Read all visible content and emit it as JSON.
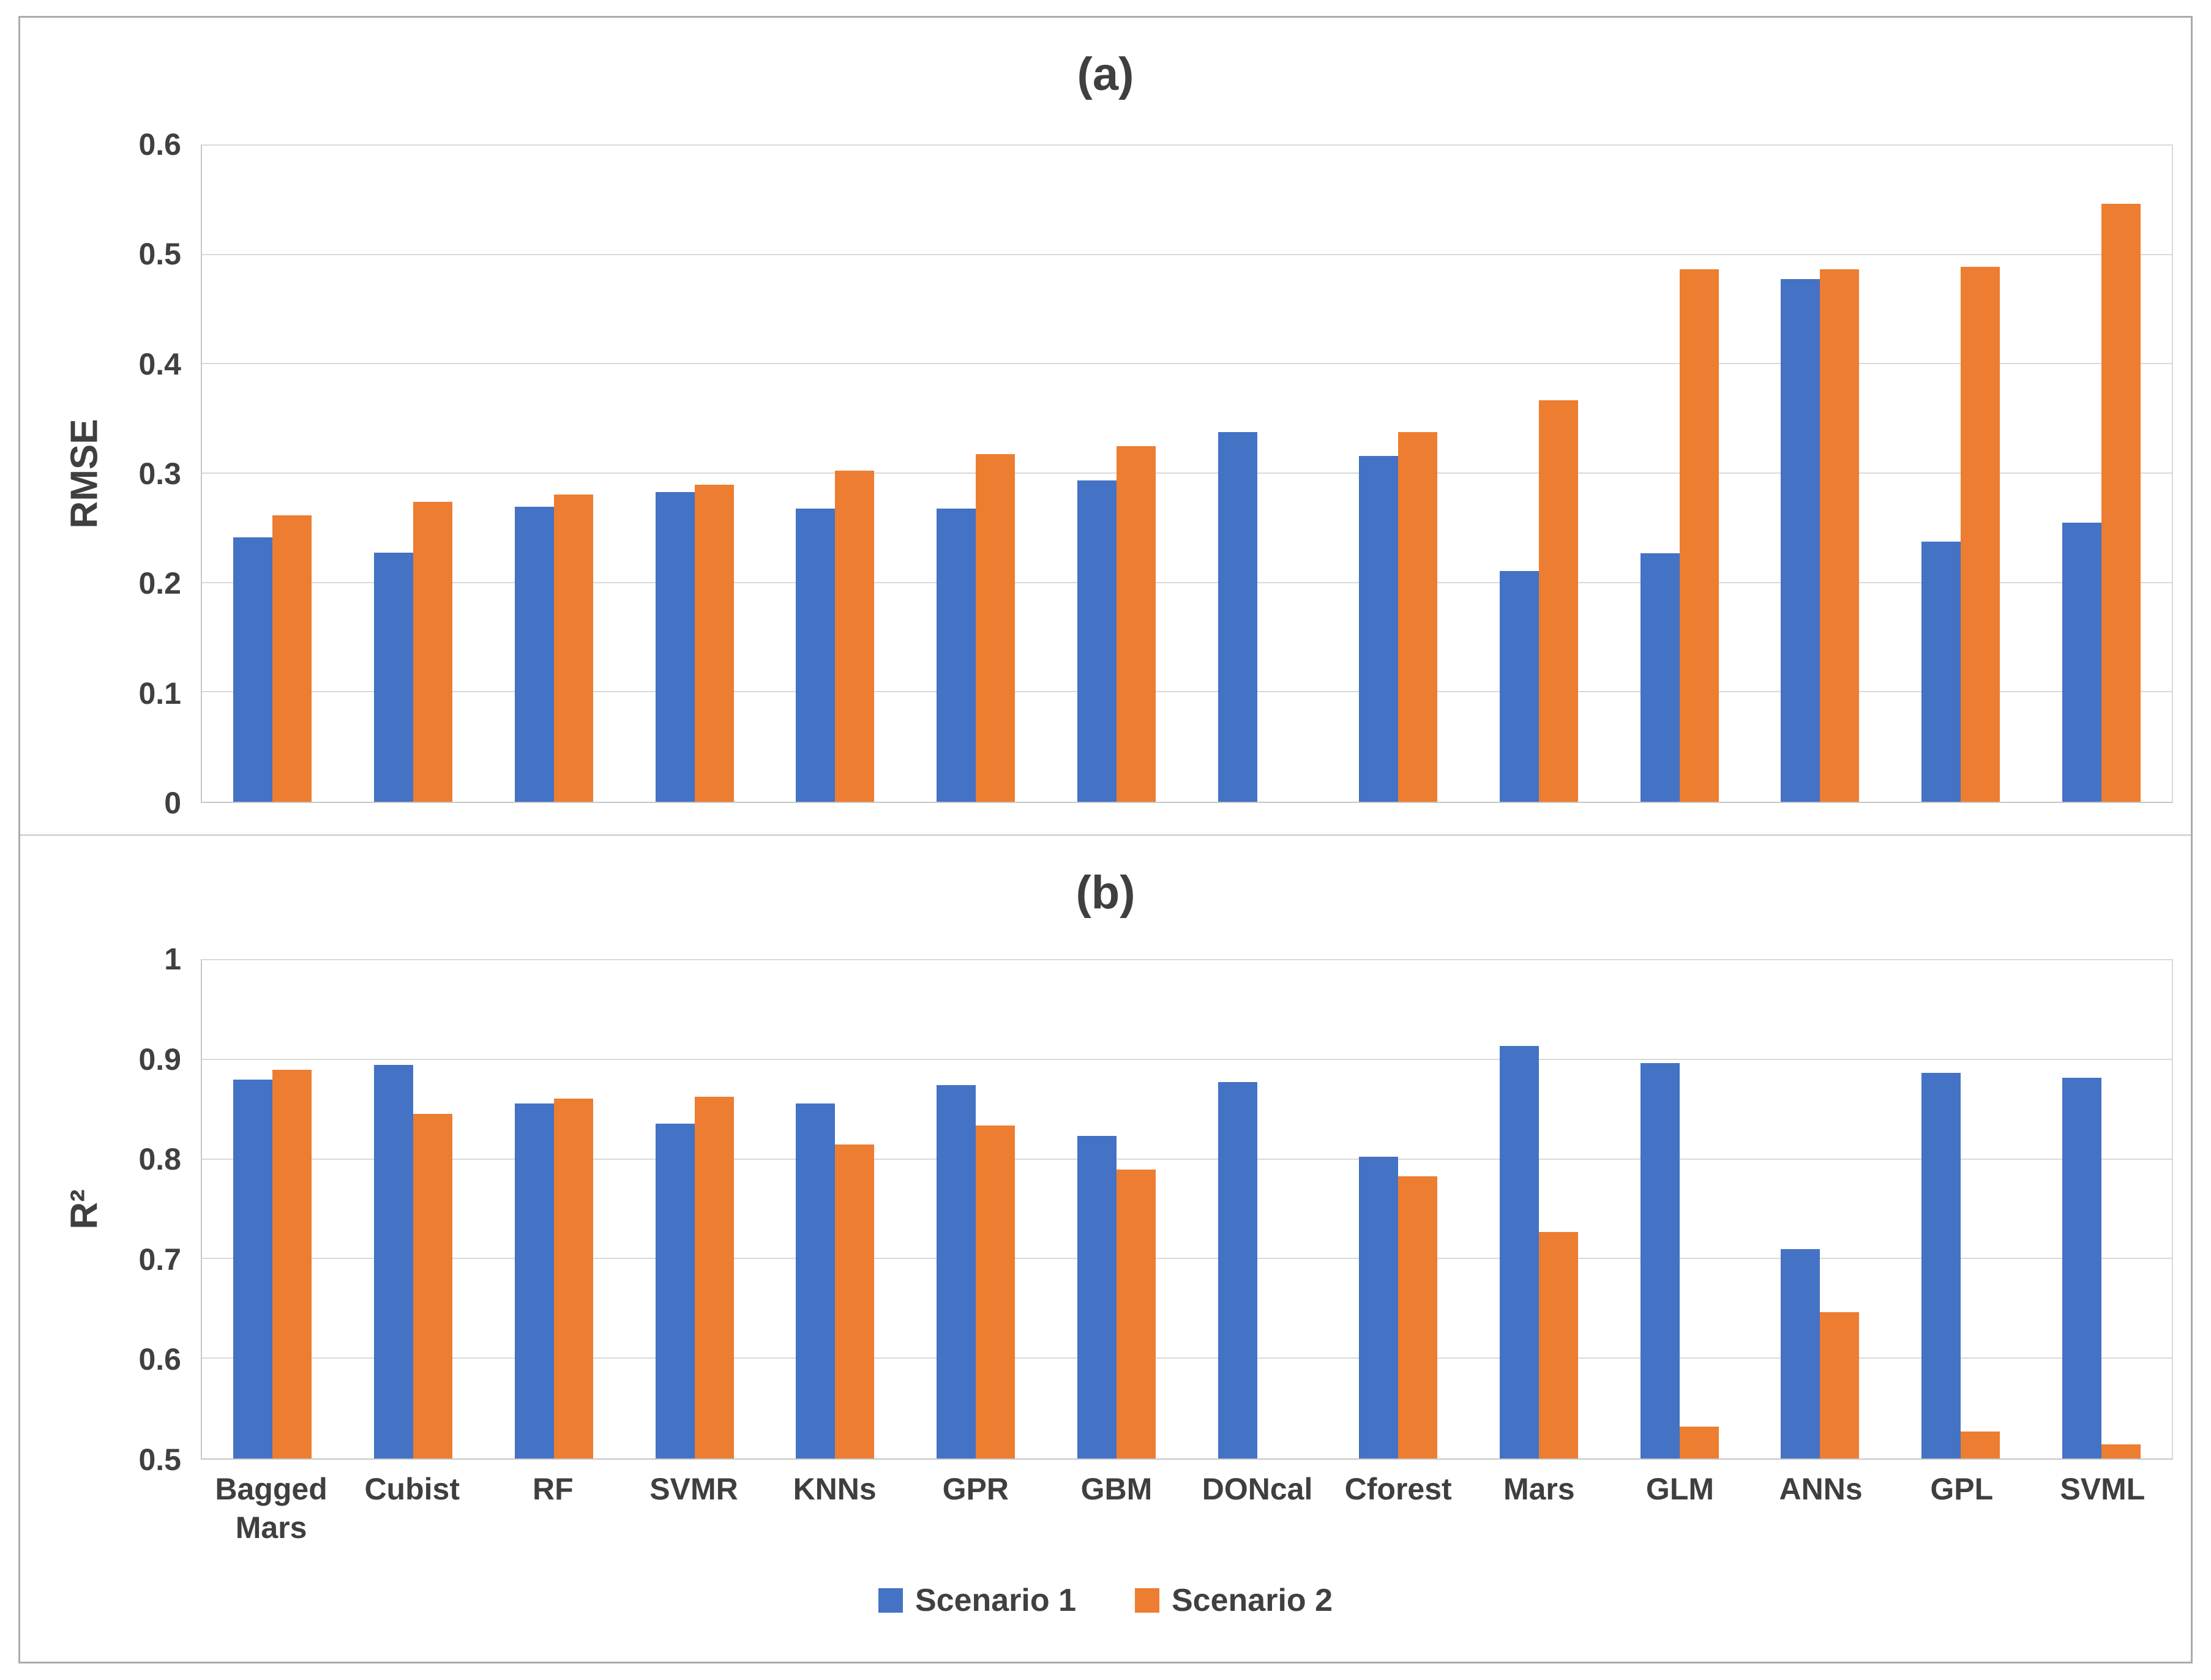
{
  "figure": {
    "border_color": "#ababab",
    "divider_color": "#d6d6d6",
    "background": "#ffffff",
    "text_color": "#404040"
  },
  "legend": {
    "items": [
      {
        "label": "Scenario 1",
        "color": "#4472C4"
      },
      {
        "label": "Scenario 2",
        "color": "#ED7D31"
      }
    ]
  },
  "chart_data": [
    {
      "type": "bar",
      "title": "(a)",
      "ylabel": "RMSE",
      "ylim": [
        0,
        0.6
      ],
      "yticks": [
        0,
        0.1,
        0.2,
        0.3,
        0.4,
        0.5,
        0.6
      ],
      "ytick_labels": [
        "0",
        "0.1",
        "0.2",
        "0.3",
        "0.4",
        "0.5",
        "0.6"
      ],
      "grid": true,
      "legend_position": "shared-bottom",
      "categories": [
        "Bagged Mars",
        "Cubist",
        "RF",
        "SVMR",
        "KNNs",
        "GPR",
        "GBM",
        "DONcal",
        "Cforest",
        "Mars",
        "GLM",
        "ANNs",
        "GPL",
        "SVML"
      ],
      "series": [
        {
          "name": "Scenario 1",
          "color": "#4472C4",
          "values": [
            0.242,
            0.228,
            0.27,
            0.283,
            0.268,
            0.268,
            0.294,
            0.338,
            0.316,
            0.211,
            0.227,
            0.478,
            0.238,
            0.255
          ]
        },
        {
          "name": "Scenario 2",
          "color": "#ED7D31",
          "values": [
            0.262,
            0.274,
            0.281,
            0.29,
            0.303,
            0.318,
            0.325,
            null,
            0.338,
            0.367,
            0.487,
            0.487,
            0.489,
            0.547
          ]
        }
      ]
    },
    {
      "type": "bar",
      "title": "(b)",
      "ylabel": "R²",
      "ylim": [
        0.5,
        1.0
      ],
      "yticks": [
        0.5,
        0.6,
        0.7,
        0.8,
        0.9,
        1
      ],
      "ytick_labels": [
        "0.5",
        "0.6",
        "0.7",
        "0.8",
        "0.9",
        "1"
      ],
      "grid": true,
      "legend_position": "shared-bottom",
      "categories": [
        "Bagged Mars",
        "Cubist",
        "RF",
        "SVMR",
        "KNNs",
        "GPR",
        "GBM",
        "DONcal",
        "Cforest",
        "Mars",
        "GLM",
        "ANNs",
        "GPL",
        "SVML"
      ],
      "series": [
        {
          "name": "Scenario 1",
          "color": "#4472C4",
          "values": [
            0.88,
            0.895,
            0.856,
            0.836,
            0.856,
            0.875,
            0.824,
            0.878,
            0.803,
            0.914,
            0.897,
            0.71,
            0.887,
            0.882
          ]
        },
        {
          "name": "Scenario 2",
          "color": "#ED7D31",
          "values": [
            0.89,
            0.846,
            0.861,
            0.863,
            0.815,
            0.834,
            0.79,
            null,
            0.783,
            0.727,
            0.532,
            0.647,
            0.527,
            0.514
          ]
        }
      ]
    }
  ]
}
